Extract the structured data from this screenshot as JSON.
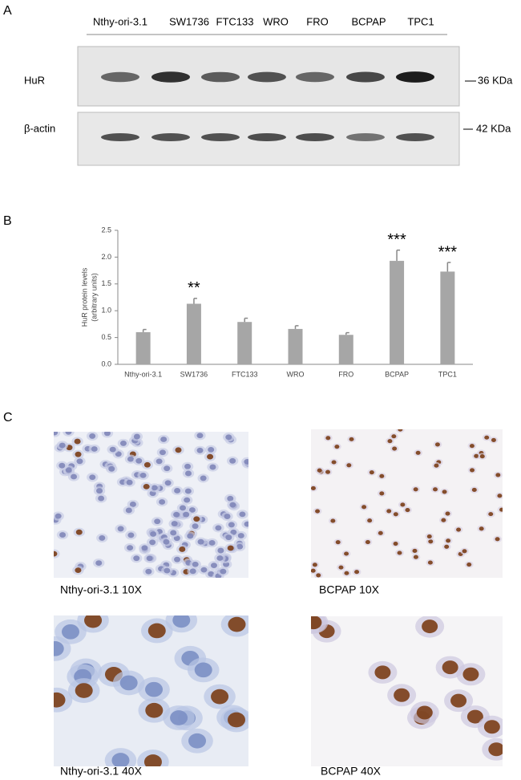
{
  "panels": {
    "a": "A",
    "b": "B",
    "c": "C"
  },
  "blot": {
    "lanes": [
      "Nthy-ori-3.1",
      "SW1736",
      "FTC133",
      "WRO",
      "FRO",
      "BCPAP",
      "TPC1"
    ],
    "rows": [
      {
        "label": "HuR",
        "marker": "36 KDa"
      },
      {
        "label": "β-actin",
        "marker": "42 KDa"
      }
    ]
  },
  "chart_data": {
    "type": "bar",
    "categories": [
      "Nthy-ori-3.1",
      "SW1736",
      "FTC133",
      "WRO",
      "FRO",
      "BCPAP",
      "TPC1"
    ],
    "values": [
      0.6,
      1.13,
      0.79,
      0.66,
      0.55,
      1.93,
      1.73
    ],
    "errors": [
      0.05,
      0.1,
      0.07,
      0.06,
      0.04,
      0.2,
      0.17
    ],
    "color": "#a6a6a6",
    "ylabel": [
      "HuR protein levels",
      "(arbitrary units)"
    ],
    "ylim": [
      0,
      2.5
    ],
    "yticks": [
      {
        "value": 0,
        "label": "0.0"
      },
      0.5,
      {
        "value": 1,
        "label": "1.0"
      },
      1.5,
      {
        "value": 2,
        "label": "2.0"
      },
      2.5
    ],
    "annotations": [
      {
        "category": "SW1736",
        "label": "**"
      },
      {
        "category": "BCPAP",
        "label": "***"
      },
      {
        "category": "TPC1",
        "label": "***"
      }
    ]
  },
  "images": [
    {
      "caption": "Nthy-ori-3.1 10X"
    },
    {
      "caption": "BCPAP 10X"
    },
    {
      "caption": "Nthy-ori-3.1 40X"
    },
    {
      "caption": "BCPAP 40X"
    }
  ]
}
